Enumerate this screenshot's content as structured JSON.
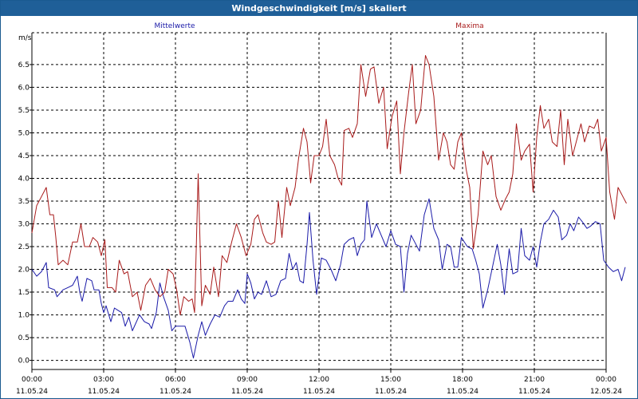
{
  "window": {
    "title": "Windgeschwindigkeit [m/s] skaliert"
  },
  "colors": {
    "titlebar": "#1f5f98",
    "mittel": "#1a1aa8",
    "maxima": "#a81a1a",
    "grid": "#000000"
  },
  "chart_data": {
    "type": "line",
    "title": "Windgeschwindigkeit [m/s] skaliert",
    "ylabel": "m/s",
    "ylim": [
      -0.2,
      7.2
    ],
    "yticks": [
      "0.0",
      "0.5",
      "1.0",
      "1.5",
      "2.0",
      "2.5",
      "3.0",
      "3.5",
      "4.0",
      "4.5",
      "5.0",
      "5.5",
      "6.0",
      "6.5"
    ],
    "xlim": [
      0,
      24
    ],
    "xticks": [
      {
        "time": "00:00",
        "date": "11.05.24"
      },
      {
        "time": "03:00",
        "date": "11.05.24"
      },
      {
        "time": "06:00",
        "date": "11.05.24"
      },
      {
        "time": "09:00",
        "date": "11.05.24"
      },
      {
        "time": "12:00",
        "date": "11.05.24"
      },
      {
        "time": "15:00",
        "date": "11.05.24"
      },
      {
        "time": "18:00",
        "date": "11.05.24"
      },
      {
        "time": "21:00",
        "date": "11.05.24"
      },
      {
        "time": "00:00",
        "date": "12.05.24"
      }
    ],
    "grid": true,
    "series": [
      {
        "name": "Mittelwerte",
        "color": "#1a1aa8",
        "points": [
          [
            0,
            2.0
          ],
          [
            0.2,
            1.85
          ],
          [
            0.4,
            1.95
          ],
          [
            0.6,
            2.15
          ],
          [
            0.7,
            1.6
          ],
          [
            0.95,
            1.55
          ],
          [
            1.05,
            1.4
          ],
          [
            1.3,
            1.55
          ],
          [
            1.5,
            1.6
          ],
          [
            1.7,
            1.65
          ],
          [
            1.9,
            1.85
          ],
          [
            2.0,
            1.5
          ],
          [
            2.1,
            1.3
          ],
          [
            2.3,
            1.8
          ],
          [
            2.5,
            1.75
          ],
          [
            2.6,
            1.55
          ],
          [
            2.7,
            1.55
          ],
          [
            2.8,
            1.55
          ],
          [
            2.9,
            1.25
          ],
          [
            3.0,
            1.05
          ],
          [
            3.1,
            1.2
          ],
          [
            3.3,
            0.85
          ],
          [
            3.45,
            1.15
          ],
          [
            3.6,
            1.1
          ],
          [
            3.75,
            1.05
          ],
          [
            3.9,
            0.75
          ],
          [
            4.05,
            0.95
          ],
          [
            4.2,
            0.65
          ],
          [
            4.5,
            1.0
          ],
          [
            4.7,
            0.85
          ],
          [
            4.9,
            0.8
          ],
          [
            5.0,
            0.7
          ],
          [
            5.2,
            1.05
          ],
          [
            5.35,
            1.7
          ],
          [
            5.5,
            1.4
          ],
          [
            5.7,
            1.1
          ],
          [
            5.85,
            0.65
          ],
          [
            6.0,
            0.75
          ],
          [
            6.4,
            0.75
          ],
          [
            6.6,
            0.4
          ],
          [
            6.75,
            0.05
          ],
          [
            6.95,
            0.55
          ],
          [
            7.1,
            0.85
          ],
          [
            7.25,
            0.55
          ],
          [
            7.45,
            0.8
          ],
          [
            7.65,
            1.0
          ],
          [
            7.85,
            0.95
          ],
          [
            8.05,
            1.2
          ],
          [
            8.2,
            1.3
          ],
          [
            8.4,
            1.3
          ],
          [
            8.6,
            1.55
          ],
          [
            8.75,
            1.35
          ],
          [
            8.9,
            1.25
          ],
          [
            9.0,
            1.9
          ],
          [
            9.15,
            1.7
          ],
          [
            9.3,
            1.35
          ],
          [
            9.45,
            1.5
          ],
          [
            9.6,
            1.45
          ],
          [
            9.8,
            1.75
          ],
          [
            10.0,
            1.4
          ],
          [
            10.2,
            1.45
          ],
          [
            10.4,
            1.75
          ],
          [
            10.6,
            1.8
          ],
          [
            10.75,
            2.35
          ],
          [
            10.9,
            2.0
          ],
          [
            11.05,
            2.15
          ],
          [
            11.2,
            1.75
          ],
          [
            11.35,
            1.7
          ],
          [
            11.5,
            2.55
          ],
          [
            11.6,
            3.25
          ],
          [
            11.75,
            2.2
          ],
          [
            11.9,
            1.45
          ],
          [
            12.1,
            2.25
          ],
          [
            12.3,
            2.2
          ],
          [
            12.5,
            2.0
          ],
          [
            12.7,
            1.75
          ],
          [
            12.9,
            2.1
          ],
          [
            13.05,
            2.55
          ],
          [
            13.25,
            2.65
          ],
          [
            13.45,
            2.7
          ],
          [
            13.6,
            2.3
          ],
          [
            13.75,
            2.55
          ],
          [
            13.9,
            2.65
          ],
          [
            14.0,
            3.5
          ],
          [
            14.2,
            2.7
          ],
          [
            14.4,
            3.0
          ],
          [
            14.6,
            2.75
          ],
          [
            14.8,
            2.5
          ],
          [
            15.0,
            2.85
          ],
          [
            15.2,
            2.55
          ],
          [
            15.4,
            2.5
          ],
          [
            15.55,
            1.5
          ],
          [
            15.7,
            2.35
          ],
          [
            15.85,
            2.75
          ],
          [
            16.05,
            2.55
          ],
          [
            16.2,
            2.4
          ],
          [
            16.4,
            3.2
          ],
          [
            16.6,
            3.55
          ],
          [
            16.8,
            2.9
          ],
          [
            17.0,
            2.65
          ],
          [
            17.15,
            2.0
          ],
          [
            17.35,
            2.55
          ],
          [
            17.5,
            2.5
          ],
          [
            17.65,
            2.05
          ],
          [
            17.8,
            2.05
          ],
          [
            17.95,
            2.7
          ],
          [
            18.2,
            2.5
          ],
          [
            18.4,
            2.45
          ],
          [
            18.55,
            2.2
          ],
          [
            18.7,
            1.9
          ],
          [
            18.85,
            1.15
          ],
          [
            19.05,
            1.55
          ],
          [
            19.25,
            2.05
          ],
          [
            19.45,
            2.55
          ],
          [
            19.6,
            2.1
          ],
          [
            19.75,
            1.45
          ],
          [
            19.95,
            2.45
          ],
          [
            20.1,
            1.9
          ],
          [
            20.3,
            1.95
          ],
          [
            20.45,
            2.9
          ],
          [
            20.6,
            2.3
          ],
          [
            20.8,
            2.2
          ],
          [
            20.95,
            2.5
          ],
          [
            21.1,
            2.05
          ],
          [
            21.25,
            2.6
          ],
          [
            21.4,
            3.0
          ],
          [
            21.6,
            3.1
          ],
          [
            21.8,
            3.3
          ],
          [
            22.0,
            3.15
          ],
          [
            22.15,
            2.65
          ],
          [
            22.35,
            2.75
          ],
          [
            22.5,
            3.0
          ],
          [
            22.65,
            2.85
          ],
          [
            22.85,
            3.15
          ],
          [
            23.0,
            3.05
          ],
          [
            23.2,
            2.9
          ],
          [
            23.35,
            2.95
          ],
          [
            23.55,
            3.05
          ],
          [
            23.75,
            3.0
          ],
          [
            23.9,
            2.2
          ],
          [
            24.1,
            2.05
          ],
          [
            24.3,
            1.95
          ],
          [
            24.5,
            2.0
          ],
          [
            24.65,
            1.75
          ],
          [
            24.8,
            2.05
          ]
        ]
      },
      {
        "name": "Maxima",
        "color": "#a81a1a",
        "points": [
          [
            0,
            2.8
          ],
          [
            0.2,
            3.4
          ],
          [
            0.4,
            3.6
          ],
          [
            0.6,
            3.8
          ],
          [
            0.75,
            3.2
          ],
          [
            0.9,
            3.2
          ],
          [
            1.0,
            2.7
          ],
          [
            1.1,
            2.1
          ],
          [
            1.3,
            2.2
          ],
          [
            1.5,
            2.1
          ],
          [
            1.7,
            2.6
          ],
          [
            1.9,
            2.6
          ],
          [
            2.05,
            3.0
          ],
          [
            2.2,
            2.5
          ],
          [
            2.4,
            2.5
          ],
          [
            2.55,
            2.7
          ],
          [
            2.75,
            2.6
          ],
          [
            2.9,
            2.3
          ],
          [
            3.05,
            2.65
          ],
          [
            3.15,
            1.6
          ],
          [
            3.35,
            1.6
          ],
          [
            3.5,
            1.5
          ],
          [
            3.65,
            2.2
          ],
          [
            3.85,
            1.9
          ],
          [
            4.0,
            1.95
          ],
          [
            4.2,
            1.4
          ],
          [
            4.4,
            1.5
          ],
          [
            4.55,
            1.1
          ],
          [
            4.75,
            1.65
          ],
          [
            4.95,
            1.8
          ],
          [
            5.15,
            1.55
          ],
          [
            5.35,
            1.4
          ],
          [
            5.55,
            1.5
          ],
          [
            5.7,
            2.0
          ],
          [
            5.9,
            1.9
          ],
          [
            6.05,
            1.55
          ],
          [
            6.2,
            1.0
          ],
          [
            6.35,
            1.4
          ],
          [
            6.55,
            1.3
          ],
          [
            6.7,
            1.35
          ],
          [
            6.8,
            1.05
          ],
          [
            6.95,
            4.1
          ],
          [
            7.1,
            1.2
          ],
          [
            7.25,
            1.65
          ],
          [
            7.45,
            1.45
          ],
          [
            7.6,
            2.05
          ],
          [
            7.8,
            1.4
          ],
          [
            7.95,
            2.3
          ],
          [
            8.15,
            2.15
          ],
          [
            8.35,
            2.6
          ],
          [
            8.55,
            3.0
          ],
          [
            8.75,
            2.7
          ],
          [
            8.95,
            2.3
          ],
          [
            9.15,
            2.55
          ],
          [
            9.3,
            3.1
          ],
          [
            9.45,
            3.2
          ],
          [
            9.65,
            2.8
          ],
          [
            9.8,
            2.6
          ],
          [
            10.0,
            2.55
          ],
          [
            10.15,
            2.6
          ],
          [
            10.3,
            3.5
          ],
          [
            10.45,
            2.7
          ],
          [
            10.65,
            3.8
          ],
          [
            10.8,
            3.4
          ],
          [
            11.0,
            3.8
          ],
          [
            11.15,
            4.45
          ],
          [
            11.35,
            5.1
          ],
          [
            11.5,
            4.8
          ],
          [
            11.65,
            3.9
          ],
          [
            11.8,
            4.5
          ],
          [
            12.0,
            4.5
          ],
          [
            12.15,
            4.7
          ],
          [
            12.3,
            5.3
          ],
          [
            12.45,
            4.5
          ],
          [
            12.65,
            4.3
          ],
          [
            12.8,
            4.0
          ],
          [
            12.95,
            3.85
          ],
          [
            13.05,
            5.05
          ],
          [
            13.25,
            5.1
          ],
          [
            13.4,
            4.9
          ],
          [
            13.6,
            5.2
          ],
          [
            13.75,
            6.5
          ],
          [
            13.95,
            5.8
          ],
          [
            14.15,
            6.4
          ],
          [
            14.3,
            6.45
          ],
          [
            14.5,
            5.65
          ],
          [
            14.7,
            6.0
          ],
          [
            14.85,
            4.65
          ],
          [
            15.05,
            5.35
          ],
          [
            15.25,
            5.7
          ],
          [
            15.4,
            4.1
          ],
          [
            15.55,
            5.0
          ],
          [
            15.75,
            5.9
          ],
          [
            15.9,
            6.5
          ],
          [
            16.05,
            5.2
          ],
          [
            16.25,
            5.5
          ],
          [
            16.45,
            6.7
          ],
          [
            16.6,
            6.5
          ],
          [
            16.8,
            5.8
          ],
          [
            17.0,
            4.4
          ],
          [
            17.2,
            5.0
          ],
          [
            17.35,
            4.8
          ],
          [
            17.5,
            4.3
          ],
          [
            17.65,
            4.2
          ],
          [
            17.8,
            4.8
          ],
          [
            17.95,
            5.0
          ],
          [
            18.15,
            4.2
          ],
          [
            18.3,
            3.8
          ],
          [
            18.45,
            2.45
          ],
          [
            18.65,
            3.2
          ],
          [
            18.85,
            4.6
          ],
          [
            19.05,
            4.3
          ],
          [
            19.2,
            4.5
          ],
          [
            19.4,
            3.6
          ],
          [
            19.6,
            3.3
          ],
          [
            19.8,
            3.55
          ],
          [
            19.95,
            3.7
          ],
          [
            20.1,
            4.1
          ],
          [
            20.25,
            5.2
          ],
          [
            20.45,
            4.4
          ],
          [
            20.6,
            4.6
          ],
          [
            20.8,
            4.75
          ],
          [
            20.95,
            3.7
          ],
          [
            21.1,
            4.9
          ],
          [
            21.25,
            5.6
          ],
          [
            21.4,
            5.1
          ],
          [
            21.6,
            5.3
          ],
          [
            21.75,
            4.8
          ],
          [
            21.95,
            4.7
          ],
          [
            22.1,
            5.5
          ],
          [
            22.25,
            4.3
          ],
          [
            22.4,
            5.3
          ],
          [
            22.6,
            4.5
          ],
          [
            22.8,
            4.9
          ],
          [
            22.95,
            5.2
          ],
          [
            23.1,
            4.8
          ],
          [
            23.3,
            5.15
          ],
          [
            23.5,
            5.1
          ],
          [
            23.65,
            5.3
          ],
          [
            23.8,
            4.6
          ],
          [
            24.0,
            4.9
          ],
          [
            24.15,
            3.7
          ],
          [
            24.35,
            3.1
          ],
          [
            24.5,
            3.8
          ],
          [
            24.7,
            3.6
          ],
          [
            24.85,
            3.45
          ]
        ]
      }
    ]
  }
}
